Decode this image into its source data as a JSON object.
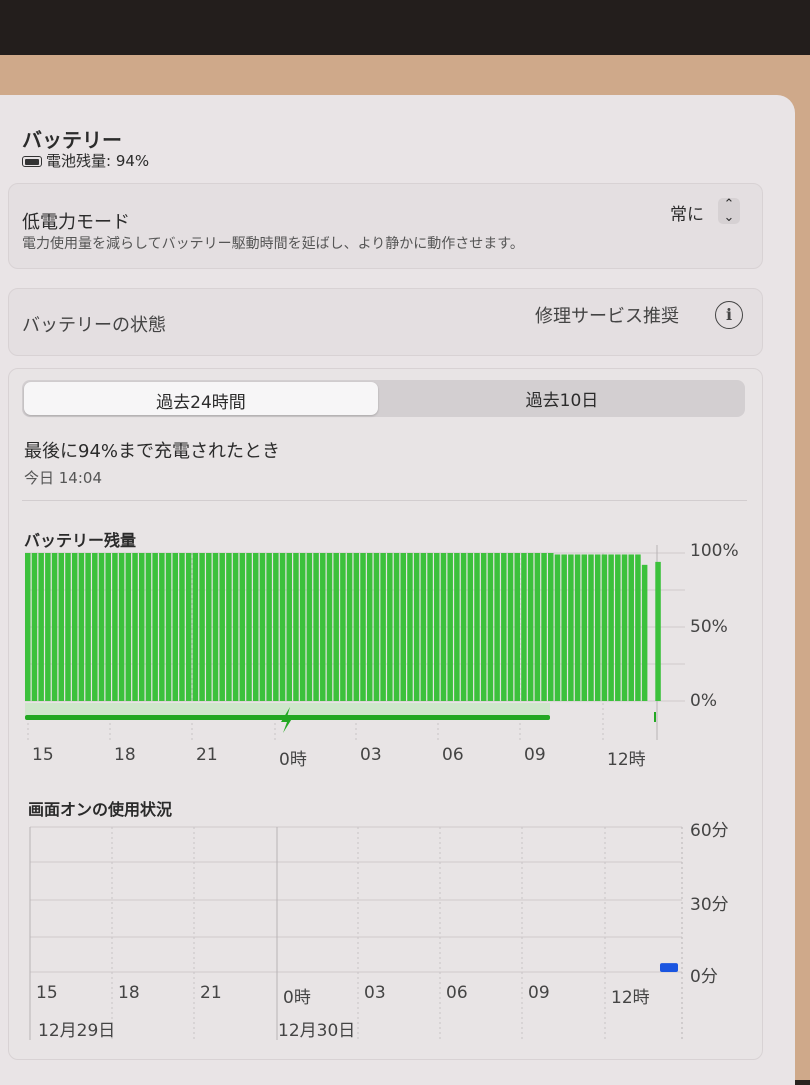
{
  "header": {
    "title": "バッテリー",
    "level_label": "電池残量: 94%"
  },
  "low_power": {
    "label": "低電力モード",
    "description": "電力使用量を減らしてバッテリー駆動時間を延ばし、より静かに動作させます。",
    "value": "常に"
  },
  "health": {
    "label": "バッテリーの状態",
    "value": "修理サービス推奨"
  },
  "tabs": [
    {
      "label": "過去24時間",
      "selected": true
    },
    {
      "label": "過去10日",
      "selected": false
    }
  ],
  "last_charge": {
    "title": "最後に94%まで充電されたとき",
    "time": "今日 14:04"
  },
  "colors": {
    "battery_green": "#3cc13c",
    "charging_green": "#22a822",
    "usage_blue": "#1a55e0"
  },
  "chart_data": [
    {
      "type": "bar",
      "title": "バッテリー残量",
      "x_ticks": [
        "15",
        "18",
        "21",
        "0時",
        "03",
        "06",
        "09",
        "12時"
      ],
      "y_ticks": [
        "100%",
        "50%",
        "0%"
      ],
      "ylim": [
        0,
        100
      ],
      "values": [
        100,
        100,
        100,
        100,
        100,
        100,
        100,
        100,
        100,
        100,
        100,
        100,
        100,
        100,
        100,
        100,
        100,
        100,
        100,
        100,
        100,
        100,
        100,
        100,
        100,
        100,
        100,
        100,
        100,
        100,
        100,
        100,
        100,
        100,
        100,
        100,
        100,
        100,
        100,
        100,
        100,
        100,
        100,
        100,
        100,
        100,
        100,
        100,
        100,
        100,
        100,
        100,
        100,
        100,
        100,
        100,
        100,
        100,
        100,
        100,
        100,
        100,
        100,
        100,
        100,
        100,
        100,
        100,
        100,
        100,
        100,
        100,
        100,
        100,
        100,
        100,
        100,
        100,
        100,
        99,
        99,
        99,
        99,
        99,
        99,
        99,
        99,
        99,
        99,
        99,
        99,
        99,
        92,
        null,
        94
      ],
      "charging_until": "09:30"
    },
    {
      "type": "bar",
      "title": "画面オンの使用状況",
      "x_ticks": [
        "15",
        "18",
        "21",
        "0時",
        "03",
        "06",
        "09",
        "12時"
      ],
      "date_labels": [
        "12月29日",
        "12月30日"
      ],
      "y_ticks": [
        "60分",
        "30分",
        "0分"
      ],
      "ylim": [
        0,
        60
      ],
      "values_note_hour": "14",
      "last_value": 2
    }
  ]
}
